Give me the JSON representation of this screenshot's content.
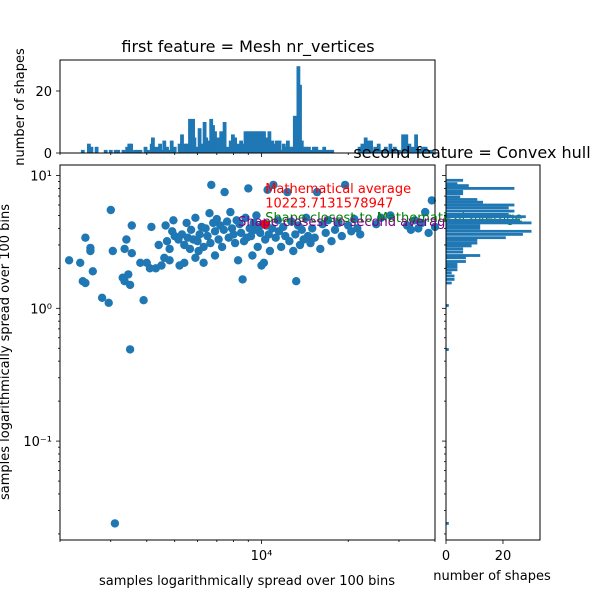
{
  "chart_data": [
    {
      "type": "scatter",
      "xlabel": "samples logarithmically spread over 100 bins",
      "ylabel": "samples logarithmically spread over 100 bins",
      "xscale": "log",
      "yscale": "log",
      "xlim": [
        2000,
        40000
      ],
      "ylim": [
        0.018,
        12
      ],
      "xtick_labels": [
        {
          "value": 10000,
          "label": "10⁴"
        }
      ],
      "ytick_labels": [
        {
          "value": 10,
          "label": "10¹"
        },
        {
          "value": 1,
          "label": "10⁰"
        },
        {
          "value": 0.1,
          "label": "10⁻¹"
        }
      ],
      "series_color": "#1f77b4",
      "points": [
        [
          2150,
          2.3
        ],
        [
          2350,
          2.2
        ],
        [
          2400,
          1.6
        ],
        [
          2450,
          3.4
        ],
        [
          2450,
          1.55
        ],
        [
          2550,
          2.7
        ],
        [
          2550,
          2.85
        ],
        [
          2600,
          1.9
        ],
        [
          2800,
          1.2
        ],
        [
          2950,
          1.1
        ],
        [
          3000,
          5.5
        ],
        [
          3050,
          2.7
        ],
        [
          3100,
          0.024
        ],
        [
          3300,
          1.7
        ],
        [
          3350,
          1.6
        ],
        [
          3350,
          2.8
        ],
        [
          3400,
          3.3
        ],
        [
          3450,
          1.8
        ],
        [
          3500,
          0.49
        ],
        [
          3500,
          1.5
        ],
        [
          3550,
          4.2
        ],
        [
          3550,
          2.6
        ],
        [
          3800,
          2.2
        ],
        [
          3900,
          1.15
        ],
        [
          4000,
          2.2
        ],
        [
          4100,
          2.0
        ],
        [
          4150,
          4.1
        ],
        [
          4300,
          2.0
        ],
        [
          4400,
          3.0
        ],
        [
          4500,
          2.1
        ],
        [
          4600,
          2.4
        ],
        [
          4650,
          4.2
        ],
        [
          4700,
          3.2
        ],
        [
          4800,
          2.3
        ],
        [
          4800,
          2.8
        ],
        [
          4900,
          3.8
        ],
        [
          4950,
          4.6
        ],
        [
          5000,
          3.5
        ],
        [
          5150,
          3.3
        ],
        [
          5200,
          2.1
        ],
        [
          5300,
          3.6
        ],
        [
          5400,
          3.0
        ],
        [
          5400,
          2.2
        ],
        [
          5500,
          4.4
        ],
        [
          5550,
          3.4
        ],
        [
          5650,
          2.8
        ],
        [
          5700,
          3.9
        ],
        [
          5800,
          3.3
        ],
        [
          5900,
          2.4
        ],
        [
          5900,
          4.8
        ],
        [
          6000,
          3.2
        ],
        [
          6050,
          2.7
        ],
        [
          6100,
          3.6
        ],
        [
          6200,
          4.1
        ],
        [
          6300,
          2.9
        ],
        [
          6300,
          2.2
        ],
        [
          6400,
          4.0
        ],
        [
          6500,
          3.5
        ],
        [
          6600,
          5.2
        ],
        [
          6650,
          3.1
        ],
        [
          6700,
          8.5
        ],
        [
          6800,
          4.4
        ],
        [
          6900,
          2.5
        ],
        [
          6900,
          3.8
        ],
        [
          7000,
          4.7
        ],
        [
          7100,
          3.3
        ],
        [
          7200,
          4.2
        ],
        [
          7300,
          2.9
        ],
        [
          7400,
          3.9
        ],
        [
          7450,
          7.5
        ],
        [
          7600,
          4.5
        ],
        [
          7700,
          3.4
        ],
        [
          7800,
          5.3
        ],
        [
          7900,
          4.0
        ],
        [
          8000,
          3.6
        ],
        [
          8100,
          3.1
        ],
        [
          8200,
          4.6
        ],
        [
          8300,
          2.3
        ],
        [
          8400,
          4.3
        ],
        [
          8500,
          3.7
        ],
        [
          8600,
          1.65
        ],
        [
          8700,
          3.2
        ],
        [
          8800,
          4.8
        ],
        [
          8900,
          3.4
        ],
        [
          9000,
          8.0
        ],
        [
          9100,
          4.0
        ],
        [
          9200,
          3.5
        ],
        [
          9300,
          2.5
        ],
        [
          9400,
          4.4
        ],
        [
          9500,
          3.9
        ],
        [
          9600,
          5.0
        ],
        [
          9700,
          2.9
        ],
        [
          9800,
          4.1
        ],
        [
          9900,
          3.7
        ],
        [
          10000,
          2.1
        ],
        [
          10100,
          4.3
        ],
        [
          10200,
          2.2
        ],
        [
          10300,
          3.3
        ],
        [
          10400,
          4.2
        ],
        [
          10500,
          7.8
        ],
        [
          10600,
          3.6
        ],
        [
          10700,
          2.7
        ],
        [
          10900,
          4.0
        ],
        [
          11000,
          8.5
        ],
        [
          11200,
          3.4
        ],
        [
          11400,
          4.6
        ],
        [
          11500,
          3.8
        ],
        [
          11700,
          2.9
        ],
        [
          11900,
          4.1
        ],
        [
          12100,
          3.5
        ],
        [
          12300,
          7.5
        ],
        [
          12500,
          3.2
        ],
        [
          12700,
          4.5
        ],
        [
          12900,
          2.7
        ],
        [
          13100,
          3.6
        ],
        [
          13200,
          1.6
        ],
        [
          13400,
          4.2
        ],
        [
          13600,
          3.0
        ],
        [
          13800,
          3.9
        ],
        [
          14000,
          3.3
        ],
        [
          14300,
          4.8
        ],
        [
          14500,
          3.5
        ],
        [
          14800,
          3.1
        ],
        [
          15000,
          4.0
        ],
        [
          15300,
          3.4
        ],
        [
          15600,
          7.5
        ],
        [
          16000,
          2.8
        ],
        [
          16300,
          4.3
        ],
        [
          16700,
          3.7
        ],
        [
          17000,
          4.6
        ],
        [
          17500,
          3.2
        ],
        [
          18000,
          3.9
        ],
        [
          18500,
          4.4
        ],
        [
          19000,
          3.5
        ],
        [
          19500,
          8.5
        ],
        [
          20000,
          4.2
        ],
        [
          20500,
          3.8
        ],
        [
          21000,
          4.7
        ],
        [
          21500,
          4.0
        ],
        [
          22000,
          3.6
        ],
        [
          25000,
          4.3
        ],
        [
          26000,
          4.8
        ],
        [
          28000,
          5.0
        ],
        [
          32000,
          4.2
        ],
        [
          33000,
          3.9
        ],
        [
          34000,
          4.6
        ],
        [
          35000,
          4.0
        ],
        [
          36000,
          4.4
        ],
        [
          37000,
          5.3
        ],
        [
          38000,
          3.7
        ],
        [
          39000,
          6.5
        ],
        [
          40000,
          4.1
        ]
      ],
      "highlight_point": {
        "x": 10300,
        "y": 4.3,
        "color": "#ff0000"
      },
      "annotations": [
        {
          "text": "Mathematical average",
          "color": "#ff0000",
          "x": 10300,
          "y": 7.9
        },
        {
          "text": "10223.7131578947",
          "color": "#ff0000",
          "x": 10300,
          "y": 6.15
        },
        {
          "text": "Shape closest to Mathematical average",
          "color": "#008000",
          "x": 10300,
          "y": 4.8
        },
        {
          "text": "Shape closest to second average",
          "color": "#800080",
          "x": 8300,
          "y": 4.45
        }
      ]
    },
    {
      "type": "bar",
      "title": "first feature = Mesh nr_vertices",
      "ylabel": "number of shapes",
      "xscale": "log",
      "xlim": [
        2000,
        40000
      ],
      "ylim": [
        0,
        30
      ],
      "ytick_labels": [
        {
          "value": 0,
          "label": "0"
        },
        {
          "value": 20,
          "label": "20"
        }
      ],
      "series_color": "#1f77b4",
      "bins": [
        [
          2400,
          1
        ],
        [
          2520,
          3
        ],
        [
          2570,
          2
        ],
        [
          2680,
          2
        ],
        [
          2880,
          1
        ],
        [
          3000,
          1
        ],
        [
          3120,
          1
        ],
        [
          3180,
          1
        ],
        [
          3320,
          1
        ],
        [
          3420,
          2
        ],
        [
          3480,
          3
        ],
        [
          3530,
          3
        ],
        [
          3640,
          1
        ],
        [
          3720,
          1
        ],
        [
          3800,
          1
        ],
        [
          3960,
          2
        ],
        [
          4040,
          1
        ],
        [
          4160,
          3
        ],
        [
          4200,
          5
        ],
        [
          4240,
          2
        ],
        [
          4350,
          2
        ],
        [
          4450,
          3
        ],
        [
          4520,
          1
        ],
        [
          4600,
          4
        ],
        [
          4700,
          2
        ],
        [
          4800,
          1
        ],
        [
          4880,
          4
        ],
        [
          5000,
          2
        ],
        [
          5200,
          3
        ],
        [
          5300,
          6
        ],
        [
          5450,
          3
        ],
        [
          5540,
          3
        ],
        [
          5650,
          11
        ],
        [
          5700,
          7
        ],
        [
          5790,
          11
        ],
        [
          5850,
          5
        ],
        [
          6000,
          2
        ],
        [
          6100,
          8
        ],
        [
          6260,
          3
        ],
        [
          6350,
          10
        ],
        [
          6430,
          5
        ],
        [
          6550,
          4
        ],
        [
          6690,
          11
        ],
        [
          6790,
          9
        ],
        [
          6900,
          7
        ],
        [
          7000,
          5
        ],
        [
          7100,
          5
        ],
        [
          7250,
          7
        ],
        [
          7320,
          5
        ],
        [
          7450,
          10
        ],
        [
          7640,
          2
        ],
        [
          7820,
          4
        ],
        [
          7960,
          6
        ],
        [
          8100,
          5
        ],
        [
          8270,
          3
        ],
        [
          8500,
          4
        ],
        [
          8600,
          3
        ],
        [
          8800,
          7
        ],
        [
          9000,
          7
        ],
        [
          9200,
          7
        ],
        [
          9400,
          7
        ],
        [
          9600,
          7
        ],
        [
          9800,
          7
        ],
        [
          10000,
          7
        ],
        [
          10200,
          7
        ],
        [
          10450,
          5
        ],
        [
          10650,
          7
        ],
        [
          10900,
          4
        ],
        [
          11100,
          3
        ],
        [
          11300,
          4
        ],
        [
          11550,
          4
        ],
        [
          11700,
          1
        ],
        [
          11950,
          3
        ],
        [
          12200,
          2
        ],
        [
          12350,
          4
        ],
        [
          12600,
          2
        ],
        [
          12800,
          2
        ],
        [
          13050,
          12
        ],
        [
          13250,
          11
        ],
        [
          13430,
          28
        ],
        [
          13600,
          22
        ],
        [
          13800,
          4
        ],
        [
          14000,
          2
        ],
        [
          14300,
          2
        ],
        [
          14600,
          2
        ],
        [
          14900,
          1
        ],
        [
          15200,
          2
        ],
        [
          15500,
          2
        ],
        [
          15800,
          1
        ],
        [
          16100,
          1
        ],
        [
          16500,
          2
        ],
        [
          16900,
          1
        ],
        [
          17300,
          1
        ],
        [
          17600,
          1
        ],
        [
          21900,
          2
        ],
        [
          22400,
          3
        ],
        [
          23000,
          5
        ],
        [
          23500,
          4
        ],
        [
          24000,
          4
        ],
        [
          24800,
          2
        ],
        [
          25500,
          3
        ],
        [
          26200,
          1
        ],
        [
          27000,
          2
        ],
        [
          28000,
          3
        ],
        [
          29000,
          2
        ],
        [
          30000,
          1
        ],
        [
          31000,
          6
        ],
        [
          31800,
          6
        ],
        [
          32600,
          3
        ],
        [
          33500,
          2
        ],
        [
          34400,
          6
        ],
        [
          35300,
          1
        ],
        [
          36200,
          2
        ],
        [
          37100,
          2
        ],
        [
          38000,
          1
        ],
        [
          39000,
          1
        ]
      ]
    },
    {
      "type": "bar",
      "orientation": "horizontal",
      "title": "second feature = Convex hull",
      "xlabel": "number of shapes",
      "yscale": "log",
      "ylim": [
        0.018,
        12
      ],
      "xlim": [
        0,
        33
      ],
      "xtick_labels": [
        {
          "value": 0,
          "label": "0"
        },
        {
          "value": 20,
          "label": "20"
        }
      ],
      "series_color": "#1f77b4",
      "bins": [
        [
          9.2,
          6
        ],
        [
          8.7,
          4
        ],
        [
          8.4,
          8
        ],
        [
          8.0,
          24
        ],
        [
          7.6,
          6
        ],
        [
          7.3,
          6
        ],
        [
          6.9,
          5
        ],
        [
          6.6,
          11
        ],
        [
          6.3,
          13
        ],
        [
          6.0,
          24
        ],
        [
          5.7,
          22
        ],
        [
          5.4,
          24
        ],
        [
          5.1,
          22
        ],
        [
          4.9,
          28
        ],
        [
          4.6,
          26
        ],
        [
          4.4,
          30
        ],
        [
          4.2,
          12
        ],
        [
          4.0,
          12
        ],
        [
          3.8,
          30
        ],
        [
          3.6,
          27
        ],
        [
          3.4,
          21
        ],
        [
          3.25,
          11
        ],
        [
          3.1,
          11
        ],
        [
          2.95,
          9
        ],
        [
          2.8,
          6
        ],
        [
          2.65,
          6
        ],
        [
          2.5,
          12
        ],
        [
          2.4,
          7
        ],
        [
          2.25,
          7
        ],
        [
          2.15,
          4
        ],
        [
          2.05,
          4
        ],
        [
          1.95,
          4
        ],
        [
          1.85,
          2
        ],
        [
          1.75,
          3
        ],
        [
          1.65,
          3
        ],
        [
          1.55,
          2
        ],
        [
          1.05,
          1
        ],
        [
          0.49,
          1
        ],
        [
          0.024,
          1
        ]
      ]
    }
  ]
}
